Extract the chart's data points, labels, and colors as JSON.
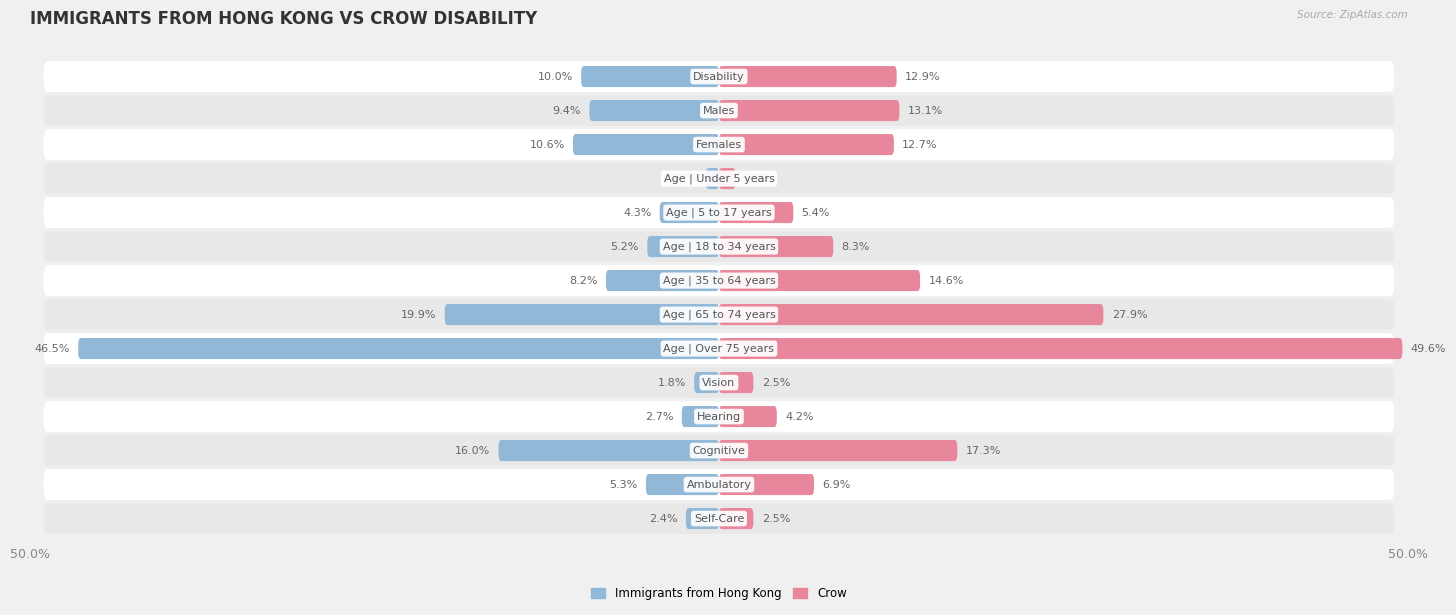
{
  "title": "IMMIGRANTS FROM HONG KONG VS CROW DISABILITY",
  "source": "Source: ZipAtlas.com",
  "categories": [
    "Disability",
    "Males",
    "Females",
    "Age | Under 5 years",
    "Age | 5 to 17 years",
    "Age | 18 to 34 years",
    "Age | 35 to 64 years",
    "Age | 65 to 74 years",
    "Age | Over 75 years",
    "Vision",
    "Hearing",
    "Cognitive",
    "Ambulatory",
    "Self-Care"
  ],
  "left_values": [
    10.0,
    9.4,
    10.6,
    0.95,
    4.3,
    5.2,
    8.2,
    19.9,
    46.5,
    1.8,
    2.7,
    16.0,
    5.3,
    2.4
  ],
  "right_values": [
    12.9,
    13.1,
    12.7,
    1.2,
    5.4,
    8.3,
    14.6,
    27.9,
    49.6,
    2.5,
    4.2,
    17.3,
    6.9,
    2.5
  ],
  "left_color": "#92b8d8",
  "right_color": "#e8879c",
  "left_label": "Immigrants from Hong Kong",
  "right_label": "Crow",
  "max_val": 50.0,
  "bar_height": 0.62,
  "bg_color": "#f0f0f0",
  "row_bg_even": "#ffffff",
  "row_bg_odd": "#e8e8e8",
  "title_fontsize": 12,
  "axis_fontsize": 9,
  "label_fontsize": 8,
  "value_fontsize": 8
}
